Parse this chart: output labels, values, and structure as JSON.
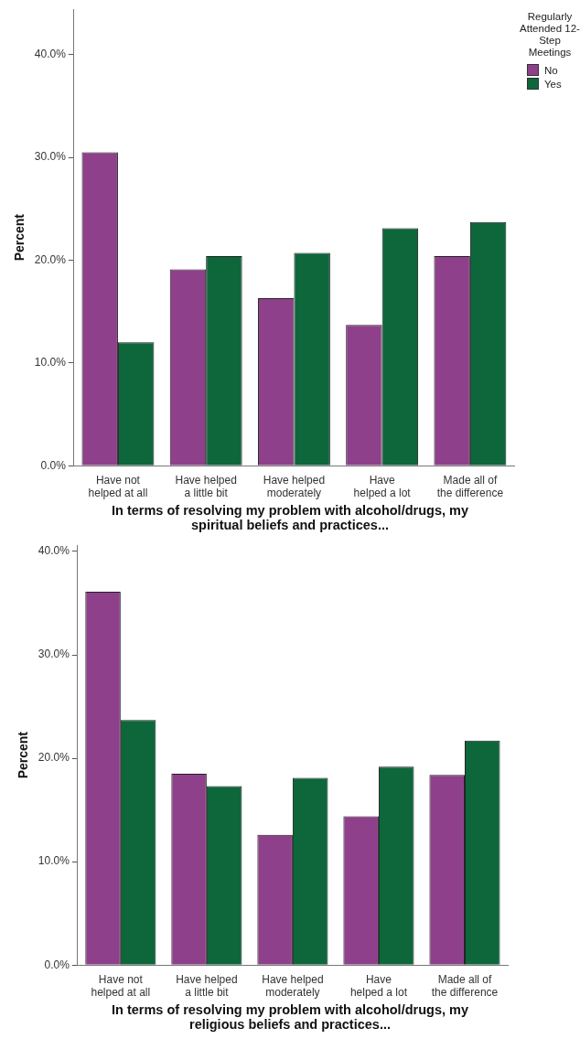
{
  "chart_data": [
    {
      "type": "bar",
      "xlabel": "In terms of resolving my problem with alcohol/drugs, my spiritual beliefs and practices...",
      "ylabel": "Percent",
      "legend_title": "Regularly Attended 12-Step Meetings",
      "legend": "top right",
      "categories": [
        "Have not helped at all",
        "Have helped a little bit",
        "Have helped moderately",
        "Have helped a lot",
        "Made all of the difference"
      ],
      "series": [
        {
          "name": "No",
          "color": "#8e408a",
          "values": [
            30.5,
            19.1,
            16.3,
            13.7,
            20.4
          ]
        },
        {
          "name": "Yes",
          "color": "#0d673b",
          "values": [
            12.0,
            20.4,
            20.7,
            23.1,
            23.7
          ]
        }
      ],
      "ylim": [
        0,
        44.4
      ],
      "yticks": [
        {
          "value": 0,
          "label": "0.0%"
        },
        {
          "value": 10,
          "label": "10.0%"
        },
        {
          "value": 20,
          "label": "20.0%"
        },
        {
          "value": 30,
          "label": "30.0%"
        },
        {
          "value": 40,
          "label": "40.0%"
        }
      ],
      "grid": false
    },
    {
      "type": "bar",
      "xlabel": "In terms of resolving my problem with alcohol/drugs, my religious beliefs and practices...",
      "ylabel": "Percent",
      "categories": [
        "Have not helped at all",
        "Have helped a little bit",
        "Have helped moderately",
        "Have helped a lot",
        "Made all of the difference"
      ],
      "series": [
        {
          "color": "#8e408a",
          "values": [
            36.1,
            18.5,
            12.6,
            14.4,
            18.4
          ]
        },
        {
          "color": "#0d673b",
          "values": [
            23.7,
            17.3,
            18.1,
            19.2,
            21.7
          ]
        }
      ],
      "ylim": [
        0,
        40.6
      ],
      "yticks": [
        {
          "value": 0,
          "label": "0.0%"
        },
        {
          "value": 10,
          "label": "10.0%"
        },
        {
          "value": 20,
          "label": "20.0%"
        },
        {
          "value": 30,
          "label": "30.0%"
        },
        {
          "value": 40,
          "label": "40.0%"
        }
      ],
      "grid": false
    }
  ]
}
